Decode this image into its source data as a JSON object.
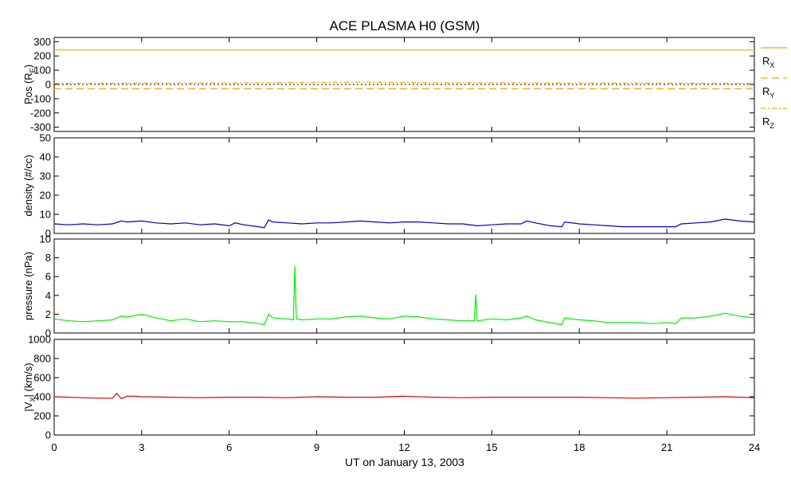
{
  "title": "ACE PLASMA H0 (GSM)",
  "xlabel": "UT on January 13, 2003",
  "x_ticks": [
    0,
    3,
    6,
    9,
    12,
    15,
    18,
    21,
    24
  ],
  "x_range": [
    0,
    24
  ],
  "chart_data": [
    {
      "type": "line",
      "ylabel_main": "Pos (R",
      "ylabel_sub": "E",
      "ylabel_close": ")",
      "ylim": [
        -330,
        330
      ],
      "yticks": [
        -300,
        -200,
        -100,
        0,
        100,
        200,
        300
      ],
      "zero_line": true,
      "series": [
        {
          "name": "R",
          "sub": "X",
          "color": "#ffa500",
          "dash": "",
          "x": [
            0,
            24
          ],
          "values": [
            242,
            242
          ]
        },
        {
          "name": "R",
          "sub": "Y",
          "color": "#ffa500",
          "dash": "9,5",
          "x": [
            0,
            24
          ],
          "values": [
            -30,
            -30
          ]
        },
        {
          "name": "R",
          "sub": "Z",
          "color": "#ffa500",
          "dash": "6,3,2,3",
          "x": [
            0,
            6,
            10.5,
            12,
            18,
            24
          ],
          "values": [
            8,
            10,
            17,
            13,
            10,
            8
          ]
        }
      ]
    },
    {
      "type": "line",
      "ylabel_main": "density (#/cc)",
      "ylim": [
        0,
        50
      ],
      "yticks": [
        0,
        10,
        20,
        30,
        40,
        50
      ],
      "series": [
        {
          "color": "#0000cc",
          "x": [
            0,
            0.5,
            1,
            1.5,
            2,
            2.3,
            2.5,
            3,
            3.5,
            4,
            4.5,
            5,
            5.5,
            6,
            6.2,
            6.5,
            7,
            7.2,
            7.35,
            7.5,
            8,
            8.5,
            9,
            9.5,
            10,
            10.5,
            11,
            11.5,
            12,
            12.5,
            13,
            13.5,
            14,
            14.5,
            15,
            15.5,
            16,
            16.2,
            16.5,
            17,
            17.4,
            17.5,
            18,
            18.5,
            19,
            19.5,
            20,
            20.5,
            21,
            21.3,
            21.5,
            22,
            22.5,
            23,
            23.5,
            24
          ],
          "values": [
            5,
            4.5,
            5,
            4.5,
            5,
            6.5,
            6,
            6.5,
            5.5,
            5,
            5.5,
            4.5,
            5,
            4,
            5.5,
            4.5,
            3.5,
            3,
            7,
            6,
            5.5,
            5,
            5.5,
            5.5,
            6,
            6.5,
            6,
            5.5,
            6,
            6,
            5.5,
            5,
            5,
            4,
            4.5,
            5,
            5,
            6.5,
            5.5,
            4,
            3.5,
            6,
            5,
            4.5,
            4,
            3.5,
            3.5,
            3.5,
            3.5,
            3.5,
            5,
            5.5,
            6,
            7.5,
            6.5,
            6
          ]
        }
      ]
    },
    {
      "type": "line",
      "ylabel_main": "pressure (nPa)",
      "ylim": [
        0,
        10
      ],
      "yticks": [
        0,
        2,
        4,
        6,
        8,
        10
      ],
      "series": [
        {
          "color": "#00ee00",
          "x": [
            0,
            0.5,
            1,
            1.5,
            2,
            2.3,
            2.5,
            3,
            3.5,
            4,
            4.5,
            5,
            5.5,
            6,
            6.5,
            7,
            7.2,
            7.35,
            7.5,
            8,
            8.2,
            8.25,
            8.3,
            8.5,
            9,
            9.5,
            10,
            10.5,
            11,
            11.5,
            12,
            12.5,
            13,
            13.5,
            14,
            14.4,
            14.45,
            14.5,
            15,
            15.5,
            16,
            16.2,
            16.5,
            17,
            17.4,
            17.5,
            18,
            18.5,
            19,
            19.5,
            20,
            20.5,
            21,
            21.3,
            21.5,
            22,
            22.5,
            23,
            23.5,
            24
          ],
          "values": [
            1.5,
            1.3,
            1.2,
            1.3,
            1.4,
            1.8,
            1.7,
            2,
            1.6,
            1.3,
            1.5,
            1.2,
            1.3,
            1.2,
            1.2,
            1,
            0.9,
            2,
            1.6,
            1.5,
            1.4,
            7.1,
            1.5,
            1.4,
            1.5,
            1.5,
            1.7,
            1.8,
            1.6,
            1.5,
            1.8,
            1.7,
            1.5,
            1.4,
            1.3,
            1.3,
            4.1,
            1.3,
            1.5,
            1.4,
            1.6,
            1.8,
            1.4,
            1.1,
            0.9,
            1.6,
            1.4,
            1.3,
            1.1,
            1.1,
            1.1,
            1,
            1.1,
            1,
            1.6,
            1.6,
            1.8,
            2.1,
            1.8,
            1.6
          ]
        }
      ]
    },
    {
      "type": "line",
      "ylabel_main": "|V",
      "ylabel_sub": "X",
      "ylabel_close": "| (km/s)",
      "ylim": [
        0,
        1000
      ],
      "yticks": [
        0,
        200,
        400,
        600,
        800,
        1000
      ],
      "series": [
        {
          "color": "#dd0000",
          "x": [
            0,
            1,
            1.5,
            2,
            2.15,
            2.3,
            2.5,
            2.8,
            3,
            4,
            5,
            6,
            7,
            8,
            9,
            10,
            11,
            12,
            13,
            14,
            15,
            16,
            17,
            18,
            19,
            20,
            21,
            22,
            23,
            24
          ],
          "values": [
            400,
            390,
            385,
            385,
            435,
            380,
            405,
            405,
            400,
            395,
            390,
            395,
            395,
            390,
            400,
            395,
            395,
            405,
            395,
            390,
            395,
            395,
            395,
            395,
            390,
            385,
            390,
            395,
            400,
            390
          ]
        }
      ]
    }
  ]
}
